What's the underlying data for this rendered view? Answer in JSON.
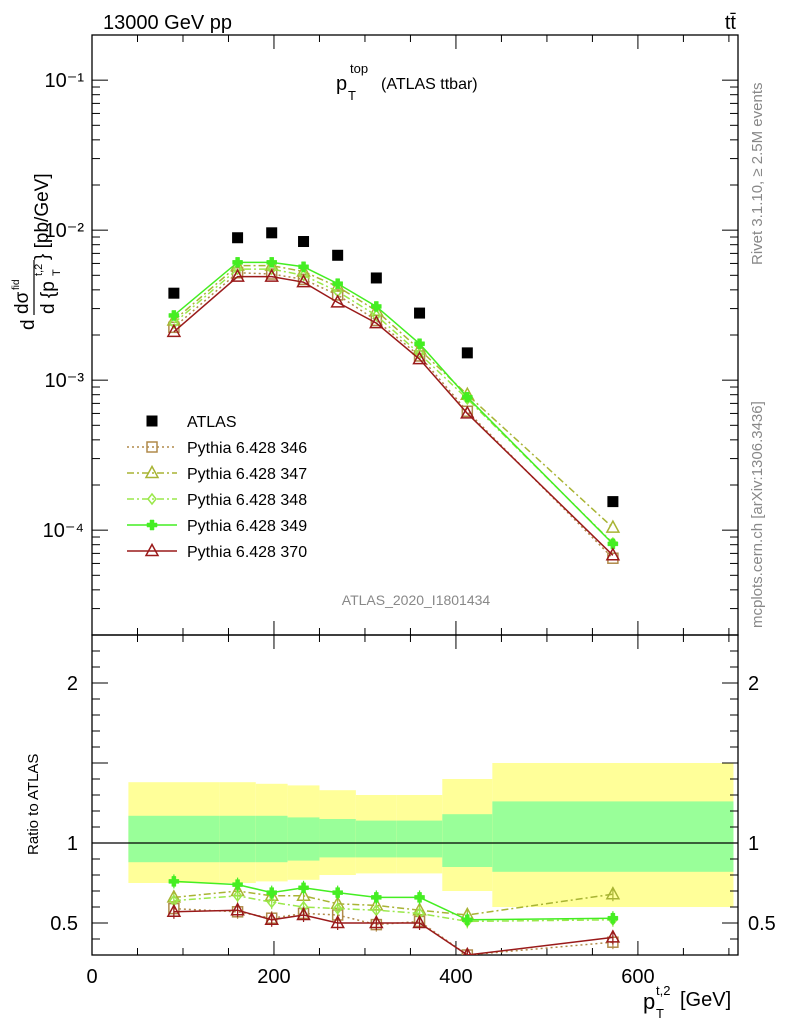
{
  "header": {
    "left": "13000 GeV pp",
    "right": "tt̄"
  },
  "side_text": {
    "rivet": "Rivet 3.1.10, ≥ 2.5M events",
    "mcplots": "mcplots.cern.ch [arXiv:1306.3436]"
  },
  "plot": {
    "title_main": "p",
    "title_sup": "top",
    "title_sub": "T",
    "title_rest": "(ATLAS ttbar)",
    "analysis": "ATLAS_2020_I1801434"
  },
  "labels": {
    "ylabel_main": "d dσ^fid / d {p_T^t,2} [pb/GeV]",
    "ylabel_ratio": "Ratio to ATLAS",
    "xlabel": "p_T^t,2 [GeV]",
    "xlabel_p": "p",
    "xlabel_sub": "T",
    "xlabel_sup": "t,2",
    "xlabel_unit": "[GeV]"
  },
  "colors": {
    "data": "#000000",
    "p346": "#b08a4a",
    "p347": "#a8b434",
    "p348": "#9ae84a",
    "p349": "#44ee22",
    "p370": "#9a1a1a",
    "band_outer": "#ffff99",
    "band_inner": "#99ff99"
  },
  "chart_data": [
    {
      "type": "scatter",
      "title": "p_T^top (ATLAS ttbar)",
      "xlabel": "p_T^t,2 [GeV]",
      "ylabel": "d dσ^fid / d {p_T^t,2} [pb/GeV]",
      "log_y": true,
      "xlim": [
        0,
        710
      ],
      "ylim": [
        2e-05,
        0.2
      ],
      "y_ticks": [
        {
          "v": 0.1,
          "label": "10⁻¹"
        },
        {
          "v": 0.01,
          "label": "10⁻²"
        },
        {
          "v": 0.001,
          "label": "10⁻³"
        },
        {
          "v": 0.0001,
          "label": "10⁻⁴"
        }
      ],
      "legend": "upper-left",
      "x": [
        90,
        160,
        197.5,
        232.5,
        270,
        312.5,
        360,
        412.5,
        572.5
      ],
      "series": [
        {
          "name": "ATLAS",
          "marker": "square-filled",
          "values": [
            0.0038,
            0.0089,
            0.0096,
            0.0084,
            0.0068,
            0.0048,
            0.0028,
            0.00152,
            0.000155
          ]
        },
        {
          "name": "Pythia 6.428 346",
          "marker": "square-open",
          "line": "dotted",
          "values": [
            0.00225,
            0.0052,
            0.0051,
            0.0047,
            0.0037,
            0.0025,
            0.00145,
            0.00062,
            6.5e-05
          ]
        },
        {
          "name": "Pythia 6.428 347",
          "marker": "triangle-open",
          "line": "dashdot",
          "values": [
            0.0025,
            0.0058,
            0.0058,
            0.0053,
            0.0042,
            0.0029,
            0.0016,
            0.0008,
            0.000104
          ]
        },
        {
          "name": "Pythia 6.428 348",
          "marker": "diamond-open",
          "line": "dashdot",
          "values": [
            0.0024,
            0.0055,
            0.0055,
            0.005,
            0.0039,
            0.0027,
            0.0015,
            0.00075,
            8.2e-05
          ]
        },
        {
          "name": "Pythia 6.428 349",
          "marker": "cross-filled",
          "line": "solid",
          "values": [
            0.0027,
            0.0061,
            0.0061,
            0.0057,
            0.0044,
            0.0031,
            0.00175,
            0.00077,
            8.1e-05
          ]
        },
        {
          "name": "Pythia 6.428 370",
          "marker": "triangle-open",
          "line": "solid",
          "values": [
            0.0021,
            0.0049,
            0.0049,
            0.0045,
            0.0033,
            0.0024,
            0.00138,
            0.0006,
            6.8e-05
          ]
        }
      ]
    },
    {
      "type": "scatter",
      "ylabel": "Ratio to ATLAS",
      "xlabel": "p_T^t,2 [GeV]",
      "xlim": [
        0,
        710
      ],
      "ylim": [
        0.3,
        2.3
      ],
      "x_ticks": [
        0,
        200,
        400,
        600
      ],
      "y_ticks": [
        0.5,
        1,
        2
      ],
      "bins": [
        [
          40,
          140
        ],
        [
          140,
          180
        ],
        [
          180,
          215
        ],
        [
          215,
          250
        ],
        [
          250,
          290
        ],
        [
          290,
          335
        ],
        [
          335,
          385
        ],
        [
          385,
          440
        ],
        [
          440,
          705
        ]
      ],
      "band_outer": [
        [
          0.75,
          1.38
        ],
        [
          0.75,
          1.38
        ],
        [
          0.76,
          1.37
        ],
        [
          0.77,
          1.36
        ],
        [
          0.8,
          1.33
        ],
        [
          0.81,
          1.3
        ],
        [
          0.81,
          1.3
        ],
        [
          0.7,
          1.4
        ],
        [
          0.6,
          1.5
        ]
      ],
      "band_inner": [
        [
          0.88,
          1.17
        ],
        [
          0.88,
          1.17
        ],
        [
          0.88,
          1.17
        ],
        [
          0.89,
          1.16
        ],
        [
          0.91,
          1.15
        ],
        [
          0.91,
          1.14
        ],
        [
          0.91,
          1.14
        ],
        [
          0.85,
          1.18
        ],
        [
          0.82,
          1.26
        ]
      ],
      "x": [
        90,
        160,
        197.5,
        232.5,
        270,
        312.5,
        360,
        412.5,
        572.5
      ],
      "series": [
        {
          "name": "Pythia 6.428 346",
          "values": [
            0.59,
            0.57,
            0.53,
            0.56,
            0.55,
            0.49,
            0.51,
            0.3,
            0.38
          ]
        },
        {
          "name": "Pythia 6.428 347",
          "values": [
            0.66,
            0.7,
            0.67,
            0.67,
            0.62,
            0.61,
            0.58,
            0.55,
            0.68
          ]
        },
        {
          "name": "Pythia 6.428 348",
          "values": [
            0.64,
            0.67,
            0.63,
            0.6,
            0.59,
            0.58,
            0.56,
            0.51,
            0.52
          ]
        },
        {
          "name": "Pythia 6.428 349",
          "values": [
            0.76,
            0.74,
            0.69,
            0.72,
            0.69,
            0.66,
            0.66,
            0.52,
            0.53
          ]
        },
        {
          "name": "Pythia 6.428 370",
          "values": [
            0.57,
            0.58,
            0.52,
            0.55,
            0.5,
            0.5,
            0.5,
            0.3,
            0.41
          ]
        }
      ]
    }
  ]
}
